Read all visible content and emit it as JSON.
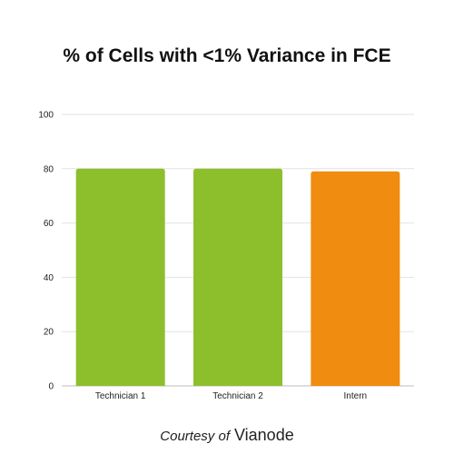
{
  "chart_data": {
    "type": "bar",
    "title": "% of Cells with <1% Variance in FCE",
    "xlabel": "",
    "ylabel": "",
    "categories": [
      "Technician 1",
      "Technician 2",
      "Intern"
    ],
    "values": [
      80,
      80,
      79
    ],
    "bar_colors": [
      "#8dbf2c",
      "#8dbf2c",
      "#f08c0f"
    ],
    "ylim": [
      0,
      100
    ],
    "yticks": [
      0,
      20,
      40,
      60,
      80,
      100
    ],
    "grid": true,
    "legend": "none"
  },
  "footer": {
    "lead": "Courtesy of",
    "brand": "Vianode"
  }
}
